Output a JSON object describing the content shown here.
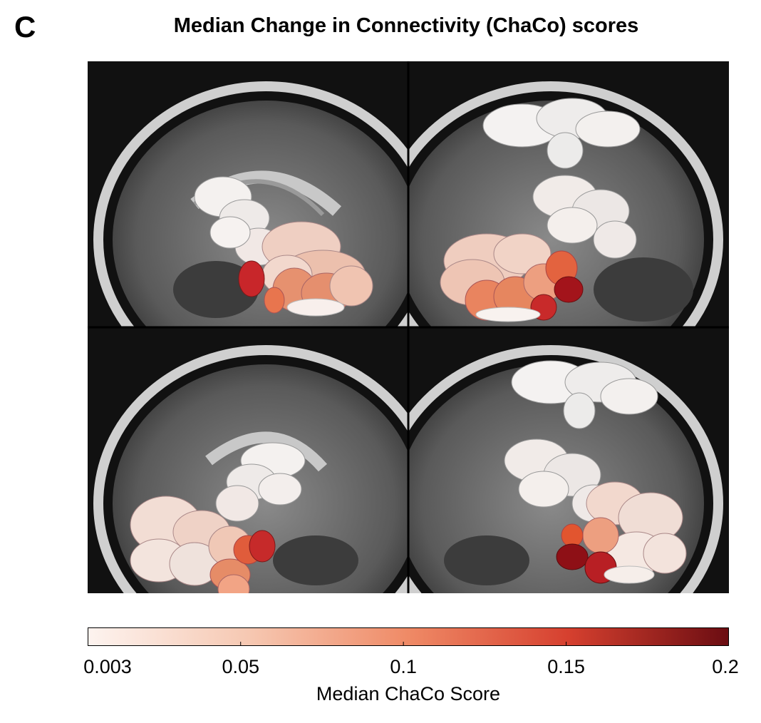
{
  "panel_label": "C",
  "title": "Median Change in Connectivity (ChaCo) scores",
  "views": [
    {
      "name": "top-left-sagittal",
      "label": ""
    },
    {
      "name": "top-right-sagittal",
      "label": ""
    },
    {
      "name": "bottom-left-sagittal",
      "label": ""
    },
    {
      "name": "bottom-right-sagittal",
      "label": ""
    }
  ],
  "colorbar": {
    "label": "Median ChaCo Score",
    "min": 0.003,
    "max": 0.2,
    "ticks": [
      "0.003",
      "0.05",
      "0.1",
      "0.15",
      "0.2"
    ],
    "tick_values": [
      0.003,
      0.05,
      0.1,
      0.15,
      0.2
    ],
    "colors": [
      "#fdf3ef",
      "#f6c8b2",
      "#ef8a66",
      "#d6402f",
      "#6b0d12"
    ]
  }
}
